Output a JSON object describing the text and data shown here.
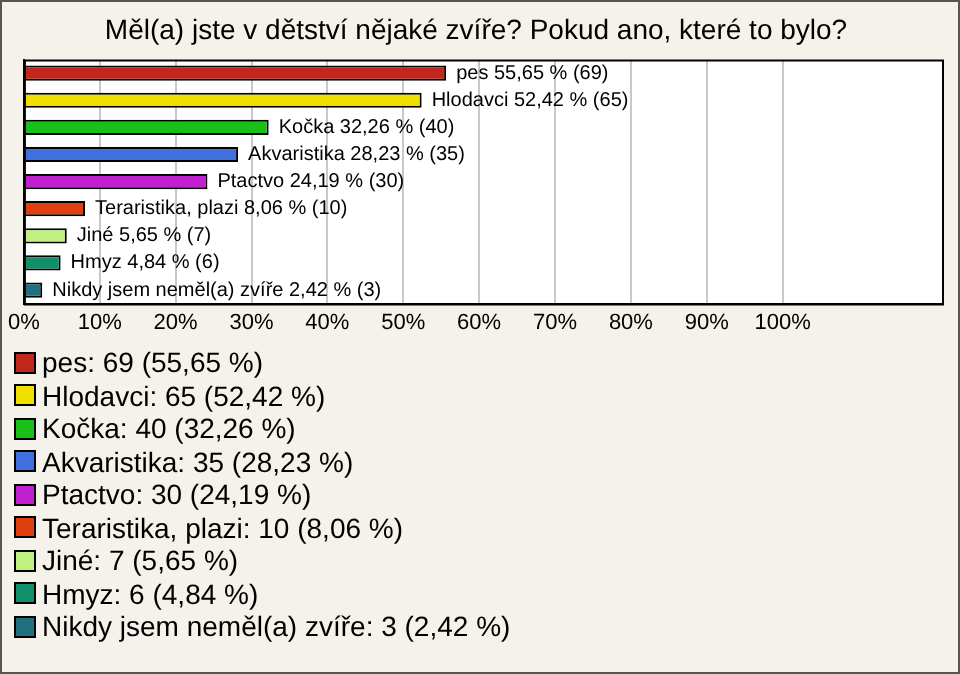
{
  "chart_data": {
    "type": "bar",
    "orientation": "horizontal",
    "title": "Měl(a) jste v dětství nějaké zvíře? Pokud ano, které to bylo?",
    "categories": [
      null,
      null,
      null,
      null,
      null,
      null,
      null,
      null,
      null
    ],
    "values": [
      55.65,
      52.42,
      32.26,
      28.23,
      24.19,
      8.06,
      5.65,
      4.84,
      2.42
    ],
    "colors": [
      "#c0281c",
      "#f0e000",
      "#18c018",
      "#4070e0",
      "#c020d0",
      "#e04010",
      "#c0f080",
      "#10906a",
      "#207080"
    ],
    "value_labels": [
      "pes 55,65 % (69)",
      "Hlodavci 52,42 % (65)",
      "Kočka 32,26 % (40)",
      "Akvaristika 28,23 % (35)",
      "Ptactvo 24,19 % (30)",
      "Teraristika, plazi 8,06 % (10)",
      "Jiné 5,65 % (7)",
      "Hmyz 4,84 % (6)",
      "Nikdy jsem neměl(a) zvíře 2,42 % (3)"
    ],
    "xlim": [
      0,
      121
    ],
    "xticks": [
      {
        "value": 0,
        "label": "0%"
      },
      {
        "value": 10,
        "label": "10%"
      },
      {
        "value": 20,
        "label": "20%"
      },
      {
        "value": 30,
        "label": "30%"
      },
      {
        "value": 40,
        "label": "40%"
      },
      {
        "value": 50,
        "label": "50%"
      },
      {
        "value": 60,
        "label": "60%"
      },
      {
        "value": 70,
        "label": "70%"
      },
      {
        "value": 80,
        "label": "80%"
      },
      {
        "value": 90,
        "label": "90%"
      },
      {
        "value": 100,
        "label": "100%"
      }
    ],
    "grid": "x",
    "tick_labels": "x",
    "annotations": [
      "pes: 69 (55,65 %)",
      "Hlodavci: 65 (52,42 %)",
      "Kočka: 40 (32,26 %)",
      "Akvaristika: 35 (28,23 %)",
      "Ptactvo: 30 (24,19 %)",
      "Teraristika, plazi: 10 (8,06 %)",
      "Jiné: 7 (5,65 %)",
      "Hmyz: 6 (4,84 %)",
      "Nikdy jsem neměl(a) zvíře: 3 (2,42 %)"
    ]
  }
}
